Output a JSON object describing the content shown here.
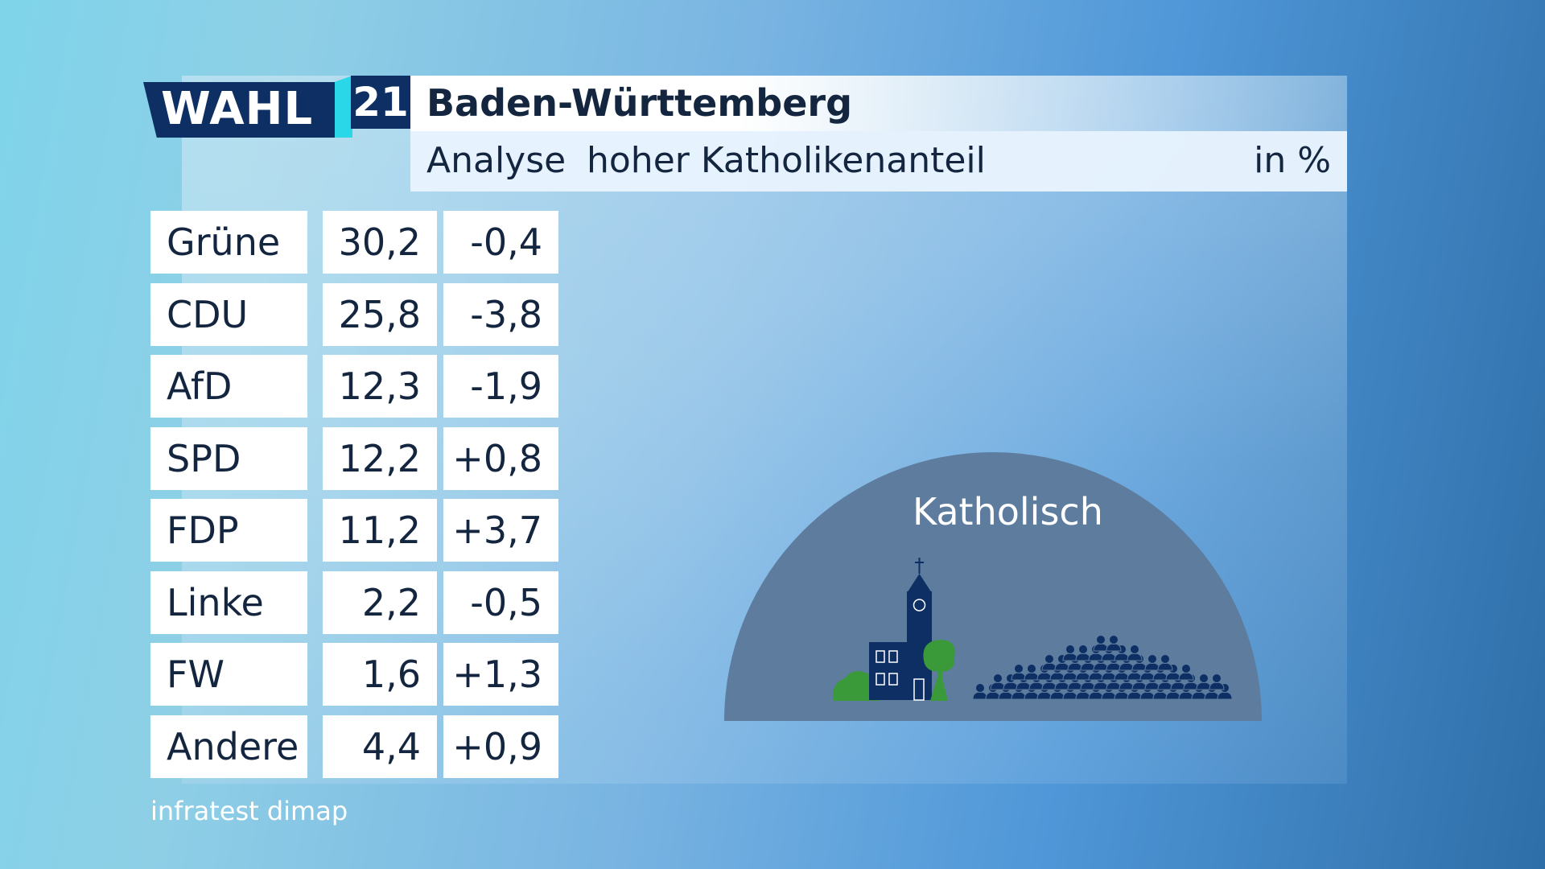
{
  "logo": {
    "word": "WAHL",
    "year": "21"
  },
  "header": {
    "title": "Baden-Württemberg",
    "subtitle_left": "Analyse",
    "subtitle_topic": "hoher Katholikenanteil",
    "unit": "in %"
  },
  "chart_data": {
    "type": "table",
    "title": "Baden-Württemberg",
    "subtitle": "Analyse hoher Katholikenanteil",
    "unit": "in %",
    "rows": [
      {
        "party": "Grüne",
        "value": "30,2",
        "change": "-0,4"
      },
      {
        "party": "CDU",
        "value": "25,8",
        "change": "-3,8"
      },
      {
        "party": "AfD",
        "value": "12,3",
        "change": "-1,9"
      },
      {
        "party": "SPD",
        "value": "12,2",
        "change": "+0,8"
      },
      {
        "party": "FDP",
        "value": "11,2",
        "change": "+3,7"
      },
      {
        "party": "Linke",
        "value": "2,2",
        "change": "-0,5"
      },
      {
        "party": "FW",
        "value": "1,6",
        "change": "+1,3"
      },
      {
        "party": "Andere",
        "value": "4,4",
        "change": "+0,9"
      }
    ]
  },
  "illustration": {
    "label": "Katholisch",
    "icons": [
      "church-icon",
      "tree-icon",
      "bush-icon",
      "crowd-icon"
    ],
    "colors": {
      "dome": "#5d7c9e",
      "navy": "#0e2f63",
      "green": "#3a9a3a"
    }
  },
  "source": "infratest dimap",
  "colors": {
    "navy": "#0e2f63",
    "cyan": "#2ad7e8",
    "text": "#13253f"
  }
}
